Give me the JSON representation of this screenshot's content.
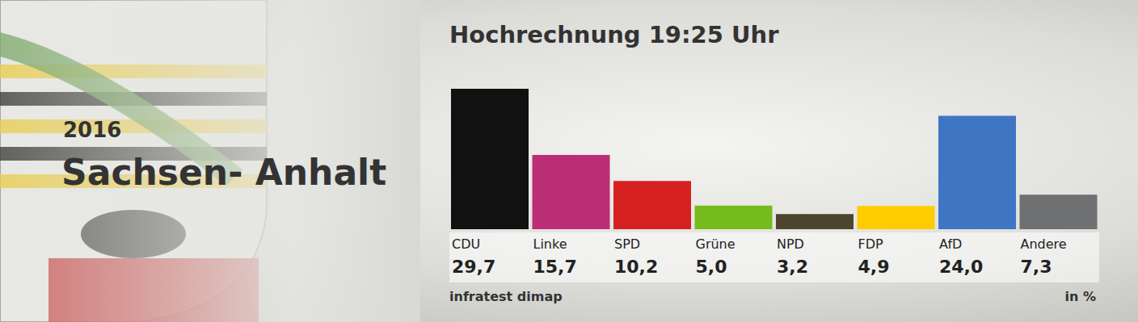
{
  "chart_data": {
    "type": "bar",
    "title": "Hochrechnung 19:25 Uhr",
    "annotations": [
      "2016",
      "Sachsen- Anhalt",
      "infratest dimap",
      "in %"
    ],
    "categories": [
      "CDU",
      "Linke",
      "SPD",
      "Grüne",
      "NPD",
      "FDP",
      "AfD",
      "Andere"
    ],
    "values": [
      29.7,
      15.7,
      10.2,
      5.0,
      3.2,
      4.9,
      24.0,
      7.3
    ],
    "value_labels": [
      "29,7",
      "15,7",
      "10,2",
      "5,0",
      "3,2",
      "4,9",
      "24,0",
      "7,3"
    ],
    "colors": [
      "#111111",
      "#bb2e76",
      "#d62121",
      "#76bb1c",
      "#4d4430",
      "#ffcc00",
      "#3f76c4",
      "#6f7072"
    ],
    "data_labels": true,
    "tick_labels": "x",
    "grid": false
  }
}
